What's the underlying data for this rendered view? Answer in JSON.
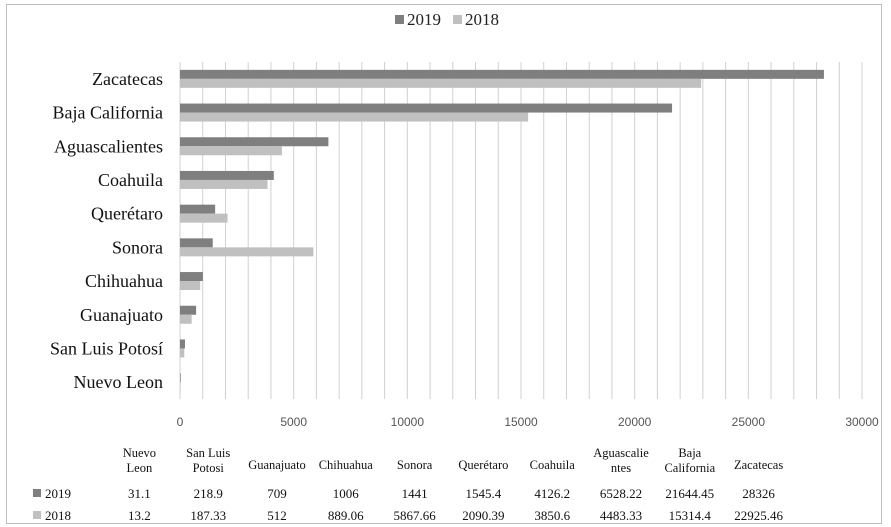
{
  "chart_data": {
    "type": "bar",
    "orientation": "horizontal",
    "categories": [
      "Zacatecas",
      "Baja California",
      "Aguascalientes",
      "Coahuila",
      "Querétaro",
      "Sonora",
      "Chihuahua",
      "Guanajuato",
      "San Luis Potosí",
      "Nuevo Leon"
    ],
    "series": [
      {
        "name": "2019",
        "color": "#7f7f7f",
        "values": [
          28326,
          21644.45,
          6528.22,
          4126.2,
          1545.4,
          1441,
          1006,
          709,
          218.9,
          31.1
        ]
      },
      {
        "name": "2018",
        "color": "#c0c0c0",
        "values": [
          22925.46,
          15314.4,
          4483.33,
          3850.6,
          2090.39,
          5867.66,
          889.06,
          512,
          187.33,
          13.2
        ]
      }
    ],
    "xlim": [
      0,
      30000
    ],
    "xticks": [
      0,
      5000,
      10000,
      15000,
      20000,
      25000,
      30000
    ],
    "grid": true,
    "legend": "top-center",
    "data_table": {
      "columns": [
        "Nuevo Leon",
        "San Luis Potosi",
        "Guanajuato",
        "Chihuahua",
        "Sonora",
        "Querétaro",
        "Coahuila",
        "Aguascalientes",
        "Baja California",
        "Zacatecas"
      ],
      "column_lines": [
        [
          "Nuevo",
          "Leon"
        ],
        [
          "San Luis",
          "Potosi"
        ],
        [
          "Guanajuato"
        ],
        [
          "Chihuahua"
        ],
        [
          "Sonora"
        ],
        [
          "Querétaro"
        ],
        [
          "Coahuila"
        ],
        [
          "Aguascalie",
          "ntes"
        ],
        [
          "Baja",
          "California"
        ],
        [
          "Zacatecas"
        ]
      ],
      "rows": [
        {
          "series": "2019",
          "values": [
            "31.1",
            "218.9",
            "709",
            "1006",
            "1441",
            "1545.4",
            "4126.2",
            "6528.22",
            "21644.45",
            "28326"
          ]
        },
        {
          "series": "2018",
          "values": [
            "13.2",
            "187.33",
            "512",
            "889.06",
            "5867.66",
            "2090.39",
            "3850.6",
            "4483.33",
            "15314.4",
            "22925.46"
          ]
        }
      ]
    }
  }
}
